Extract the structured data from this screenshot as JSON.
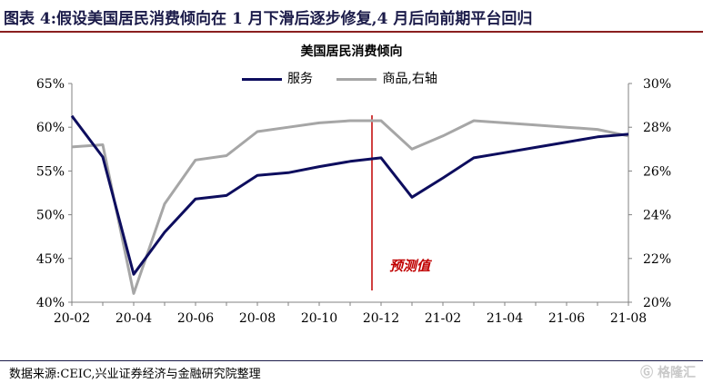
{
  "figure": {
    "title": "图表 4:假设美国居民消费倾向在 1 月下滑后逐步修复,4 月后向前期平台回归",
    "source": "数据来源:CEIC,兴业证券经济与金融研究院整理",
    "watermark": "格隆汇"
  },
  "chart_data": {
    "type": "line",
    "title": "美国居民消费倾向",
    "x": [
      "20-02",
      "20-03",
      "20-04",
      "20-05",
      "20-06",
      "20-07",
      "20-08",
      "20-09",
      "20-10",
      "20-11",
      "20-12",
      "21-01",
      "21-02",
      "21-03",
      "21-04",
      "21-05",
      "21-06",
      "21-07",
      "21-08"
    ],
    "x_tick_labels": [
      "20-02",
      "20-04",
      "20-06",
      "20-08",
      "20-10",
      "20-12",
      "21-02",
      "21-04",
      "21-06",
      "21-08"
    ],
    "y_left": {
      "ticks": [
        "40%",
        "45%",
        "50%",
        "55%",
        "60%",
        "65%"
      ],
      "range": [
        40,
        65
      ],
      "unit": "%"
    },
    "y_right": {
      "ticks": [
        "20%",
        "22%",
        "24%",
        "26%",
        "28%",
        "30%"
      ],
      "range": [
        20,
        30
      ],
      "unit": "%"
    },
    "series": [
      {
        "name": "服务",
        "axis": "left",
        "color": "#0d0d5e",
        "values": [
          61.3,
          56.6,
          43.2,
          48.0,
          51.8,
          52.2,
          54.5,
          54.8,
          55.5,
          56.1,
          56.5,
          52.0,
          54.2,
          56.5,
          57.1,
          57.7,
          58.3,
          58.9,
          59.2
        ]
      },
      {
        "name": "商品,右轴",
        "axis": "right",
        "color": "#a6a6a6",
        "values": [
          27.1,
          27.2,
          20.4,
          24.5,
          26.5,
          26.7,
          27.8,
          28.0,
          28.2,
          28.3,
          28.3,
          27.0,
          27.6,
          28.3,
          28.2,
          28.1,
          28.0,
          27.9,
          27.6
        ]
      }
    ],
    "annotation": {
      "text": "预测值",
      "x": "20-12",
      "color": "#c00000"
    },
    "grid": false,
    "legend_position": "top"
  }
}
